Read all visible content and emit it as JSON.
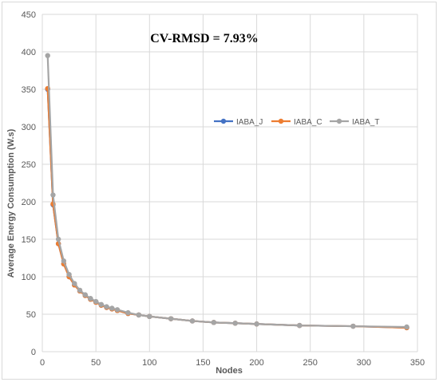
{
  "chart_data": {
    "type": "line",
    "annotation": "CV-RMSD = 7.93%",
    "xlabel": "Nodes",
    "ylabel": "Average Energy Consumption (W.s)",
    "xlim": [
      0,
      350
    ],
    "ylim": [
      0,
      450
    ],
    "xticks": [
      0,
      50,
      100,
      150,
      200,
      250,
      300,
      350
    ],
    "yticks": [
      0,
      50,
      100,
      150,
      200,
      250,
      300,
      350,
      400,
      450
    ],
    "grid": true,
    "legend_position": "right",
    "x": [
      5,
      10,
      15,
      20,
      25,
      30,
      35,
      40,
      45,
      50,
      55,
      60,
      65,
      70,
      80,
      90,
      100,
      120,
      140,
      160,
      180,
      200,
      240,
      290,
      340
    ],
    "series": [
      {
        "name": "IABA_J",
        "color": "#4472c4",
        "values": [
          350,
          196,
          144,
          117,
          100,
          89,
          81,
          75,
          70,
          66,
          62,
          59,
          57,
          55,
          51,
          49,
          47,
          44,
          41,
          39,
          38,
          37,
          35,
          34,
          32
        ]
      },
      {
        "name": "IABA_C",
        "color": "#ed7d31",
        "values": [
          351,
          197,
          144,
          117,
          100,
          89,
          81,
          75,
          70,
          66,
          62,
          59,
          57,
          55,
          51,
          49,
          47,
          44,
          41,
          39,
          38,
          37,
          35,
          34,
          32
        ]
      },
      {
        "name": "IABA_T",
        "color": "#a5a5a5",
        "values": [
          395,
          209,
          150,
          121,
          103,
          91,
          82,
          76,
          71,
          67,
          63,
          60,
          58,
          56,
          52,
          49,
          47,
          44,
          41,
          39,
          38,
          37,
          35,
          34,
          33
        ]
      }
    ]
  }
}
